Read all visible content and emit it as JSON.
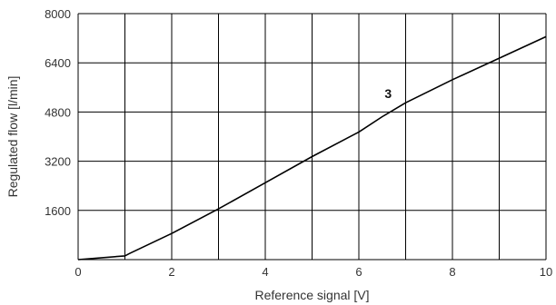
{
  "chart_data": {
    "type": "line",
    "title": "",
    "xlabel": "Reference signal [V]",
    "ylabel": "Regulated flow [l/min]",
    "xlim": [
      0,
      10
    ],
    "ylim": [
      0,
      8000
    ],
    "xticks": [
      0,
      2,
      4,
      6,
      8,
      10
    ],
    "xtick_labels": [
      "0",
      "2",
      "4",
      "6",
      "8",
      "10"
    ],
    "yticks": [
      1600,
      3200,
      4800,
      6400,
      8000
    ],
    "ytick_labels": [
      "1600",
      "3200",
      "4800",
      "6400",
      "8000"
    ],
    "grid": true,
    "grid_x": [
      0,
      1,
      2,
      3,
      4,
      5,
      6,
      7,
      8,
      9,
      10
    ],
    "grid_y": [
      0,
      1600,
      3200,
      4800,
      6400,
      8000
    ],
    "series": [
      {
        "x": [
          0,
          1,
          1.1,
          2,
          3,
          4,
          5,
          6,
          6.5,
          7,
          8,
          9,
          10
        ],
        "y": [
          0,
          120,
          200,
          850,
          1650,
          2500,
          3350,
          4150,
          4650,
          5100,
          5850,
          6550,
          7250
        ]
      }
    ],
    "annotations": [
      {
        "text": "3",
        "x": 6.55,
        "y": 5250
      }
    ],
    "colors": {
      "line": "#000000",
      "grid": "#000000",
      "text": "#333333"
    }
  }
}
